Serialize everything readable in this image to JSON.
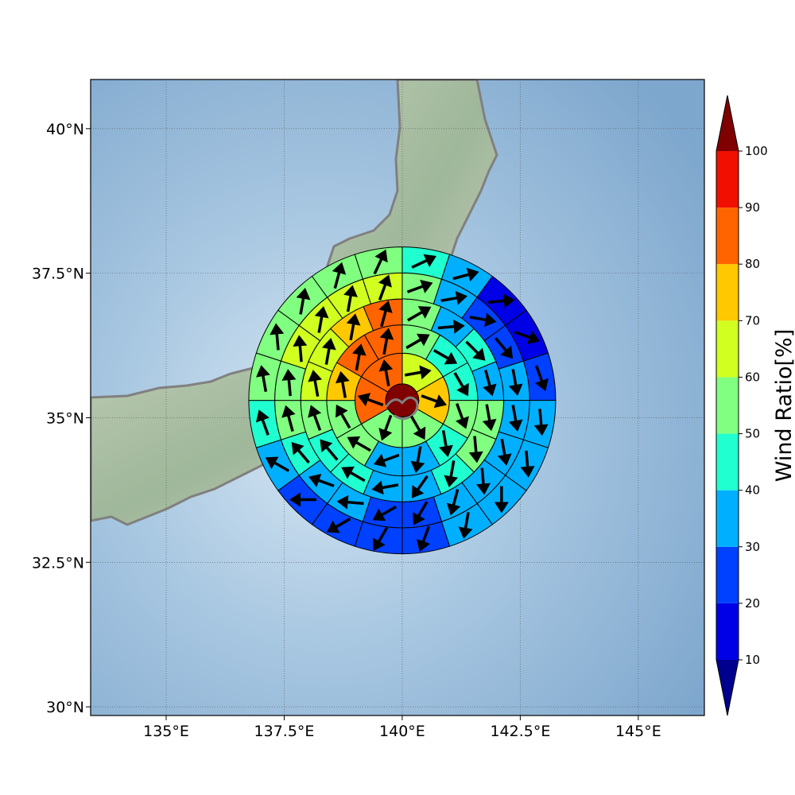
{
  "chart_data": {
    "type": "heatmap",
    "description_of_encoding": "polar wind-ratio sectors around a center point with wind-direction arrows",
    "center": {
      "lon": 140.0,
      "lat": 35.3
    },
    "ring_edges_deg": [
      0.35,
      1.0,
      1.6,
      2.15,
      2.7,
      3.25
    ],
    "sectors_per_ring": [
      1,
      6,
      12,
      16,
      20,
      20
    ],
    "x_ticks": [
      "135°E",
      "137.5°E",
      "140°E",
      "142.5°E",
      "145°E"
    ],
    "x_tick_values": [
      135.0,
      137.5,
      140.0,
      142.5,
      145.0
    ],
    "y_ticks": [
      "30°N",
      "32.5°N",
      "35°N",
      "37.5°N",
      "40°N"
    ],
    "y_tick_values": [
      30.0,
      32.5,
      35.0,
      37.5,
      40.0
    ],
    "xlim": [
      133.4,
      146.4
    ],
    "ylim": [
      29.85,
      40.85
    ],
    "grid": true,
    "colorbar": {
      "title": "Wind Ratio[%]",
      "levels": [
        10,
        20,
        30,
        40,
        50,
        60,
        70,
        80,
        90,
        100
      ],
      "colors": [
        "#00008f",
        "#0000e6",
        "#0040ff",
        "#00b0ff",
        "#20ffd0",
        "#80ff80",
        "#d0ff20",
        "#ffc800",
        "#ff6400",
        "#f00f00",
        "#800000"
      ],
      "extend": "both"
    },
    "center_value": 100,
    "rings": [
      {
        "values": [
          65,
          75,
          55,
          55,
          85,
          85
        ],
        "arrows": [
          80,
          110,
          150,
          200,
          290,
          350
        ]
      },
      {
        "values": [
          55,
          45,
          45,
          55,
          45,
          35,
          35,
          55,
          55,
          75,
          85,
          85
        ],
        "arrows": [
          60,
          120,
          150,
          160,
          170,
          190,
          250,
          300,
          330,
          350,
          10,
          10
        ]
      },
      {
        "values": [
          55,
          35,
          45,
          35,
          55,
          55,
          45,
          35,
          35,
          45,
          45,
          55,
          65,
          65,
          75,
          85
        ],
        "arrows": [
          60,
          85,
          135,
          165,
          170,
          175,
          190,
          215,
          260,
          300,
          320,
          340,
          350,
          10,
          10,
          15
        ]
      },
      {
        "values": [
          55,
          35,
          25,
          25,
          35,
          35,
          35,
          35,
          35,
          25,
          25,
          35,
          35,
          45,
          55,
          55,
          65,
          65,
          65,
          65
        ],
        "arrows": [
          70,
          80,
          100,
          140,
          170,
          170,
          170,
          175,
          195,
          210,
          240,
          275,
          290,
          320,
          345,
          355,
          355,
          10,
          10,
          20
        ]
      },
      {
        "values": [
          45,
          35,
          15,
          15,
          25,
          35,
          35,
          35,
          35,
          25,
          25,
          25,
          25,
          35,
          45,
          55,
          55,
          55,
          55,
          55
        ],
        "arrows": [
          65,
          75,
          85,
          110,
          160,
          175,
          175,
          180,
          190,
          200,
          210,
          240,
          270,
          300,
          340,
          350,
          355,
          10,
          15,
          25
        ]
      }
    ]
  }
}
